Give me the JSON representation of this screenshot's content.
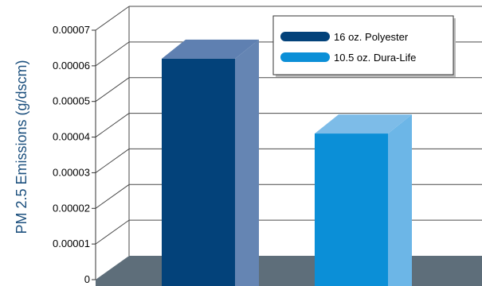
{
  "chart_data": {
    "type": "bar",
    "title": "",
    "xlabel": "",
    "ylabel": "PM 2.5 Emissions (g/dscm)",
    "categories": [
      "",
      ""
    ],
    "ylim": [
      0,
      7e-05
    ],
    "yticks": [
      "0",
      "0.00001",
      "0.00002",
      "0.00003",
      "0.00004",
      "0.00005",
      "0.00006",
      "0.00007"
    ],
    "grid": true,
    "legend": "top-right",
    "series": [
      {
        "name": "16 oz. Polyester",
        "value": 6.2e-05,
        "color": "#03427a",
        "side_color": "#6585b3",
        "top_color": "#5f80b1"
      },
      {
        "name": "10.5 oz. Dura-Life",
        "value": 4.1e-05,
        "color": "#0b8fd7",
        "side_color": "#6cb6e7",
        "top_color": "#7dbce8"
      }
    ]
  }
}
